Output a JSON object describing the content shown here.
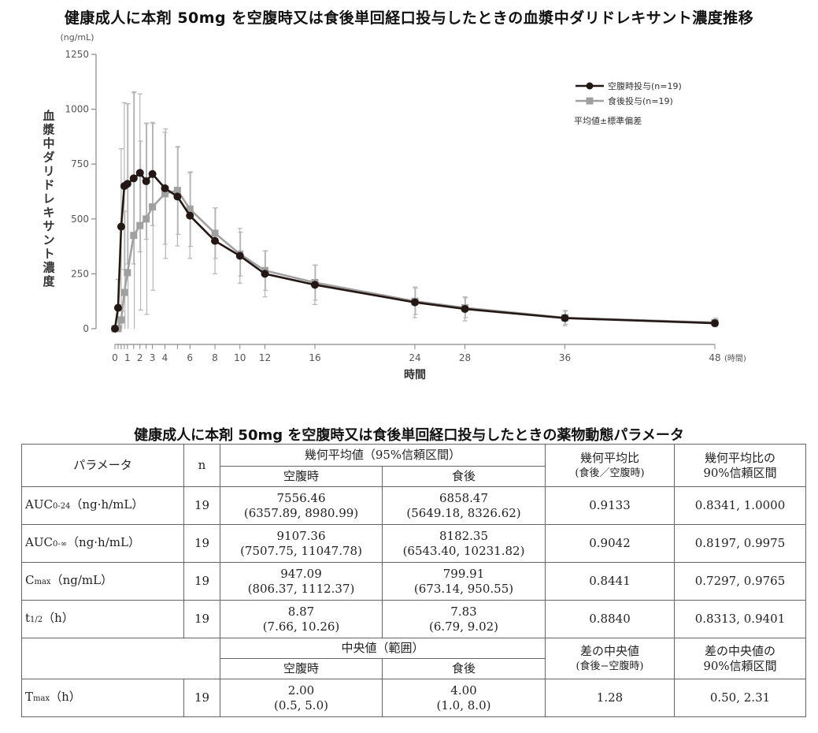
{
  "chart_title": "健康成人に本剤 50mg を空腹時又は食後単回経口投与したときの血漿中ダリドレキサント濃度推移",
  "chart_data": {
    "type": "line",
    "title": "健康成人に本剤 50mg を空腹時又は食後単回経口投与したときの血漿中ダリドレキサント濃度推移",
    "xlabel": "時間",
    "xunit": "(時間)",
    "ylabel": "血漿中ダリドレキサント濃度",
    "yunit": "(ng/mL)",
    "ylim": [
      0,
      1250
    ],
    "xlim": [
      0,
      48
    ],
    "yticks": [
      0,
      250,
      500,
      750,
      1000,
      1250
    ],
    "xticks": [
      0,
      1,
      2,
      3,
      4,
      6,
      8,
      10,
      12,
      16,
      24,
      28,
      36,
      48
    ],
    "grid": false,
    "legend_position": "upper right",
    "legend_note": "平均値±標準偏差",
    "x": [
      0,
      0.25,
      0.5,
      0.75,
      1,
      1.5,
      2,
      2.5,
      3,
      4,
      5,
      6,
      8,
      10,
      12,
      16,
      24,
      28,
      36,
      48
    ],
    "series": [
      {
        "name": "空腹時投与(n=19)",
        "color": "#231815",
        "marker": "circle",
        "values": [
          0,
          95,
          465,
          650,
          660,
          685,
          710,
          672,
          705,
          640,
          602,
          515,
          400,
          332,
          250,
          200,
          120,
          90,
          48,
          25
        ],
        "sd": [
          0,
          130,
          355,
          380,
          365,
          390,
          360,
          265,
          235,
          255,
          225,
          195,
          150,
          125,
          105,
          90,
          70,
          55,
          35,
          15
        ]
      },
      {
        "name": "食後投与(n=19)",
        "color": "#a0a0a0",
        "marker": "square",
        "values": [
          0,
          0,
          40,
          165,
          255,
          425,
          470,
          500,
          555,
          615,
          630,
          545,
          435,
          340,
          265,
          210,
          125,
          95,
          50,
          28
        ],
        "sd": [
          0,
          0,
          40,
          370,
          770,
          655,
          385,
          435,
          380,
          295,
          200,
          170,
          115,
          100,
          90,
          80,
          60,
          45,
          30,
          20
        ]
      }
    ]
  },
  "table": {
    "title": "健康成人に本剤 50mg を空腹時又は食後単回経口投与したときの薬物動態パラメータ",
    "header": {
      "param": "パラメータ",
      "n": "n",
      "geo_mean": "幾何平均値（95%信頼区間）",
      "fasted": "空腹時",
      "fed": "食後",
      "ratio_l1": "幾何平均比",
      "ratio_l2": "(食後／空腹時)",
      "ci_l1": "幾何平均比の",
      "ci_l2": "90%信頼区間"
    },
    "rows": [
      {
        "param": "AUC",
        "sub": "0-24",
        "unit": "（ng·h/mL）",
        "n": "19",
        "fasted": "7556.46",
        "fasted_ci": "(6357.89, 8980.99)",
        "fed": "6858.47",
        "fed_ci": "(5649.18, 8326.62)",
        "ratio": "0.9133",
        "ci90": "0.8341, 1.0000"
      },
      {
        "param": "AUC",
        "sub": "0-∞",
        "unit": "（ng·h/mL）",
        "n": "19",
        "fasted": "9107.36",
        "fasted_ci": "(7507.75, 11047.78)",
        "fed": "8182.35",
        "fed_ci": "(6543.40, 10231.82)",
        "ratio": "0.9042",
        "ci90": "0.8197, 0.9975"
      },
      {
        "param": "C",
        "sub": "max",
        "unit": "（ng/mL）",
        "n": "19",
        "fasted": "947.09",
        "fasted_ci": "(806.37, 1112.37)",
        "fed": "799.91",
        "fed_ci": "(673.14, 950.55)",
        "ratio": "0.8441",
        "ci90": "0.7297, 0.9765"
      },
      {
        "param": "t",
        "sub": "1/2",
        "unit": "（h）",
        "n": "19",
        "fasted": "8.87",
        "fasted_ci": "(7.66, 10.26)",
        "fed": "7.83",
        "fed_ci": "(6.79, 9.02)",
        "ratio": "0.8840",
        "ci90": "0.8313, 0.9401"
      }
    ],
    "header2": {
      "median": "中央値（範囲）",
      "fasted": "空腹時",
      "fed": "食後",
      "diff_l1": "差の中央値",
      "diff_l2": "(食後−空腹時)",
      "ci_l1": "差の中央値の",
      "ci_l2": "90%信頼区間"
    },
    "tmax": {
      "param": "T",
      "sub": "max",
      "unit": "（h）",
      "n": "19",
      "fasted": "2.00",
      "fasted_range": "(0.5, 5.0)",
      "fed": "4.00",
      "fed_range": "(1.0, 8.0)",
      "diff": "1.28",
      "ci90": "0.50, 2.31"
    }
  }
}
